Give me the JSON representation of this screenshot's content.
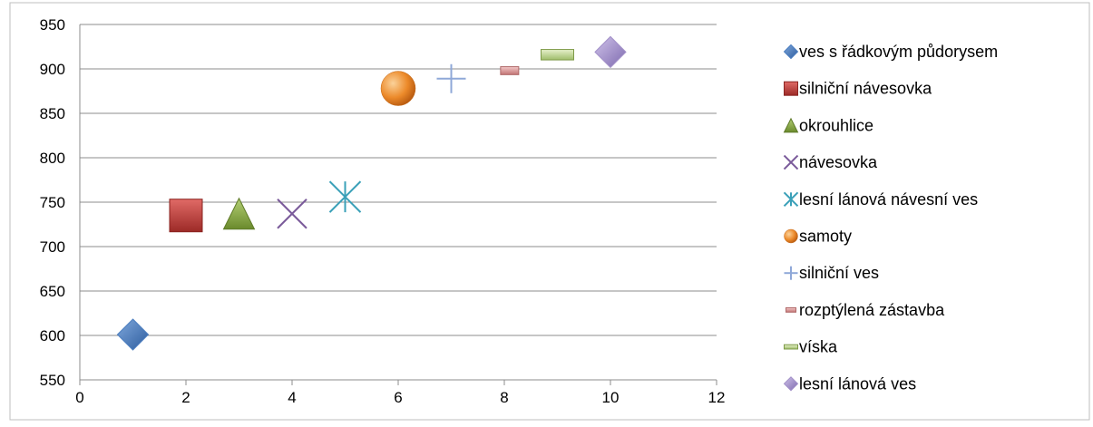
{
  "chart_data": {
    "type": "scatter",
    "title": "",
    "xlabel": "",
    "ylabel": "",
    "xlim": [
      0,
      12
    ],
    "ylim": [
      550,
      950
    ],
    "x_ticks": [
      "0",
      "2",
      "4",
      "6",
      "8",
      "10",
      "12"
    ],
    "y_ticks": [
      "550",
      "600",
      "650",
      "700",
      "750",
      "800",
      "850",
      "900",
      "950"
    ],
    "grid": "horizontal",
    "legend_position": "right",
    "series": [
      {
        "name": "ves s řádkovým půdorysem",
        "marker": "diamond",
        "color": "#4a7dbf",
        "x": 1,
        "y": 601
      },
      {
        "name": "silniční návesovka",
        "marker": "square",
        "color": "#c0403c",
        "x": 2,
        "y": 735
      },
      {
        "name": "okrouhlice",
        "marker": "triangle",
        "color": "#8fb04a",
        "x": 3,
        "y": 737
      },
      {
        "name": "návesovka",
        "marker": "x",
        "color": "#7a5a9a",
        "x": 4,
        "y": 737
      },
      {
        "name": "lesní lánová návesní ves",
        "marker": "star",
        "color": "#3aa0b8",
        "x": 5,
        "y": 756
      },
      {
        "name": "samoty",
        "marker": "circle",
        "color": "#e6892f",
        "x": 6,
        "y": 878
      },
      {
        "name": "silniční ves",
        "marker": "plus",
        "color": "#8fa8d8",
        "x": 7,
        "y": 889
      },
      {
        "name": "rozptýlená zástavba",
        "marker": "small-rect",
        "color": "#d89a9a",
        "x": 8.1,
        "y": 898
      },
      {
        "name": "víska",
        "marker": "dash",
        "color": "#b8d08a",
        "x": 9,
        "y": 916
      },
      {
        "name": "lesní lánová ves",
        "marker": "diamond",
        "color": "#a290c8",
        "x": 10,
        "y": 919
      }
    ]
  }
}
